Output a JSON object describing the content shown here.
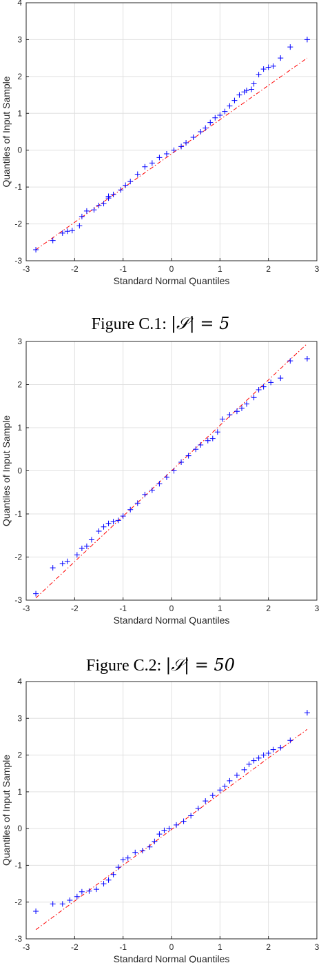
{
  "captions": [
    {
      "label": "Figure C.1:",
      "math": "|𝒮| = 5"
    },
    {
      "label": "Figure C.2:",
      "math": "|𝒮| = 50"
    }
  ],
  "colors": {
    "points": "#0000ff",
    "reference_line": "#ff0000",
    "grid": "#e0e0e0",
    "axis": "#262626"
  },
  "chart_data": [
    {
      "type": "scatter",
      "subtype": "qq-plot",
      "xlabel": "Standard Normal Quantiles",
      "ylabel": "Quantiles of Input Sample",
      "xlim": [
        -3,
        3
      ],
      "ylim": [
        -3,
        4
      ],
      "xticks": [
        -3,
        -2,
        -1,
        0,
        1,
        2,
        3
      ],
      "yticks": [
        -3,
        -2,
        -1,
        0,
        1,
        2,
        3,
        4
      ],
      "grid": true,
      "marker": "+",
      "reference_line": {
        "style": "dash-dot",
        "x": [
          -2.8,
          2.8
        ],
        "y": [
          -2.7,
          2.5
        ]
      },
      "series": [
        {
          "values": [
            [
              -2.8,
              -2.7
            ],
            [
              -2.45,
              -2.45
            ],
            [
              -2.25,
              -2.25
            ],
            [
              -2.15,
              -2.2
            ],
            [
              -2.05,
              -2.18
            ],
            [
              -1.9,
              -2.05
            ],
            [
              -1.85,
              -1.8
            ],
            [
              -1.75,
              -1.65
            ],
            [
              -1.6,
              -1.62
            ],
            [
              -1.5,
              -1.5
            ],
            [
              -1.4,
              -1.45
            ],
            [
              -1.3,
              -1.3
            ],
            [
              -1.3,
              -1.25
            ],
            [
              -1.2,
              -1.2
            ],
            [
              -1.05,
              -1.08
            ],
            [
              -0.95,
              -0.95
            ],
            [
              -0.85,
              -0.85
            ],
            [
              -0.7,
              -0.65
            ],
            [
              -0.55,
              -0.45
            ],
            [
              -0.4,
              -0.35
            ],
            [
              -0.25,
              -0.2
            ],
            [
              -0.1,
              -0.1
            ],
            [
              0.05,
              0
            ],
            [
              0.2,
              0.1
            ],
            [
              0.3,
              0.2
            ],
            [
              0.45,
              0.35
            ],
            [
              0.6,
              0.5
            ],
            [
              0.7,
              0.6
            ],
            [
              0.8,
              0.75
            ],
            [
              0.9,
              0.88
            ],
            [
              1.0,
              0.95
            ],
            [
              1.1,
              1.05
            ],
            [
              1.2,
              1.2
            ],
            [
              1.3,
              1.35
            ],
            [
              1.4,
              1.5
            ],
            [
              1.5,
              1.58
            ],
            [
              1.55,
              1.62
            ],
            [
              1.65,
              1.65
            ],
            [
              1.7,
              1.8
            ],
            [
              1.8,
              2.05
            ],
            [
              1.9,
              2.2
            ],
            [
              2.0,
              2.25
            ],
            [
              2.1,
              2.28
            ],
            [
              2.25,
              2.5
            ],
            [
              2.45,
              2.8
            ],
            [
              2.8,
              3.0
            ]
          ]
        }
      ]
    },
    {
      "type": "scatter",
      "subtype": "qq-plot",
      "xlabel": "Standard Normal Quantiles",
      "ylabel": "Quantiles of Input Sample",
      "xlim": [
        -3,
        3
      ],
      "ylim": [
        -3,
        3
      ],
      "xticks": [
        -3,
        -2,
        -1,
        0,
        1,
        2,
        3
      ],
      "yticks": [
        -3,
        -2,
        -1,
        0,
        1,
        2,
        3
      ],
      "grid": true,
      "marker": "+",
      "reference_line": {
        "style": "dash-dot",
        "x": [
          -2.8,
          2.8
        ],
        "y": [
          -2.95,
          2.95
        ]
      },
      "series": [
        {
          "values": [
            [
              -2.8,
              -2.85
            ],
            [
              -2.45,
              -2.25
            ],
            [
              -2.25,
              -2.15
            ],
            [
              -2.15,
              -2.1
            ],
            [
              -1.95,
              -1.95
            ],
            [
              -1.85,
              -1.8
            ],
            [
              -1.75,
              -1.75
            ],
            [
              -1.65,
              -1.6
            ],
            [
              -1.5,
              -1.4
            ],
            [
              -1.4,
              -1.3
            ],
            [
              -1.3,
              -1.22
            ],
            [
              -1.2,
              -1.18
            ],
            [
              -1.1,
              -1.15
            ],
            [
              -1.0,
              -1.05
            ],
            [
              -0.85,
              -0.9
            ],
            [
              -0.7,
              -0.75
            ],
            [
              -0.55,
              -0.55
            ],
            [
              -0.4,
              -0.45
            ],
            [
              -0.25,
              -0.3
            ],
            [
              -0.1,
              -0.15
            ],
            [
              0.05,
              0
            ],
            [
              0.2,
              0.2
            ],
            [
              0.35,
              0.35
            ],
            [
              0.5,
              0.5
            ],
            [
              0.6,
              0.6
            ],
            [
              0.75,
              0.7
            ],
            [
              0.85,
              0.75
            ],
            [
              0.95,
              0.9
            ],
            [
              1.05,
              1.2
            ],
            [
              1.2,
              1.3
            ],
            [
              1.35,
              1.38
            ],
            [
              1.45,
              1.45
            ],
            [
              1.55,
              1.55
            ],
            [
              1.7,
              1.7
            ],
            [
              1.8,
              1.88
            ],
            [
              1.9,
              1.95
            ],
            [
              2.05,
              2.05
            ],
            [
              2.25,
              2.15
            ],
            [
              2.45,
              2.55
            ],
            [
              2.8,
              2.6
            ]
          ]
        }
      ]
    },
    {
      "type": "scatter",
      "subtype": "qq-plot",
      "xlabel": "Standard Normal Quantiles",
      "ylabel": "Quantiles of Input Sample",
      "xlim": [
        -3,
        3
      ],
      "ylim": [
        -3,
        4
      ],
      "xticks": [
        -3,
        -2,
        -1,
        0,
        1,
        2,
        3
      ],
      "yticks": [
        -3,
        -2,
        -1,
        0,
        1,
        2,
        3,
        4
      ],
      "grid": true,
      "marker": "+",
      "reference_line": {
        "style": "dash-dot",
        "x": [
          -2.8,
          2.8
        ],
        "y": [
          -2.75,
          2.7
        ]
      },
      "series": [
        {
          "values": [
            [
              -2.8,
              -2.25
            ],
            [
              -2.45,
              -2.05
            ],
            [
              -2.25,
              -2.05
            ],
            [
              -2.1,
              -1.95
            ],
            [
              -1.95,
              -1.85
            ],
            [
              -1.85,
              -1.72
            ],
            [
              -1.7,
              -1.7
            ],
            [
              -1.55,
              -1.65
            ],
            [
              -1.4,
              -1.5
            ],
            [
              -1.3,
              -1.4
            ],
            [
              -1.2,
              -1.25
            ],
            [
              -1.1,
              -1.05
            ],
            [
              -1.0,
              -0.85
            ],
            [
              -0.9,
              -0.8
            ],
            [
              -0.75,
              -0.65
            ],
            [
              -0.6,
              -0.6
            ],
            [
              -0.45,
              -0.5
            ],
            [
              -0.35,
              -0.35
            ],
            [
              -0.25,
              -0.15
            ],
            [
              -0.15,
              -0.05
            ],
            [
              -0.05,
              0
            ],
            [
              0.1,
              0.1
            ],
            [
              0.25,
              0.2
            ],
            [
              0.4,
              0.35
            ],
            [
              0.55,
              0.55
            ],
            [
              0.7,
              0.75
            ],
            [
              0.85,
              0.9
            ],
            [
              1.0,
              1.05
            ],
            [
              1.1,
              1.15
            ],
            [
              1.2,
              1.3
            ],
            [
              1.35,
              1.45
            ],
            [
              1.5,
              1.6
            ],
            [
              1.6,
              1.75
            ],
            [
              1.7,
              1.85
            ],
            [
              1.8,
              1.92
            ],
            [
              1.9,
              2.0
            ],
            [
              2.0,
              2.05
            ],
            [
              2.1,
              2.15
            ],
            [
              2.25,
              2.2
            ],
            [
              2.45,
              2.4
            ],
            [
              2.8,
              3.15
            ]
          ]
        }
      ]
    }
  ]
}
